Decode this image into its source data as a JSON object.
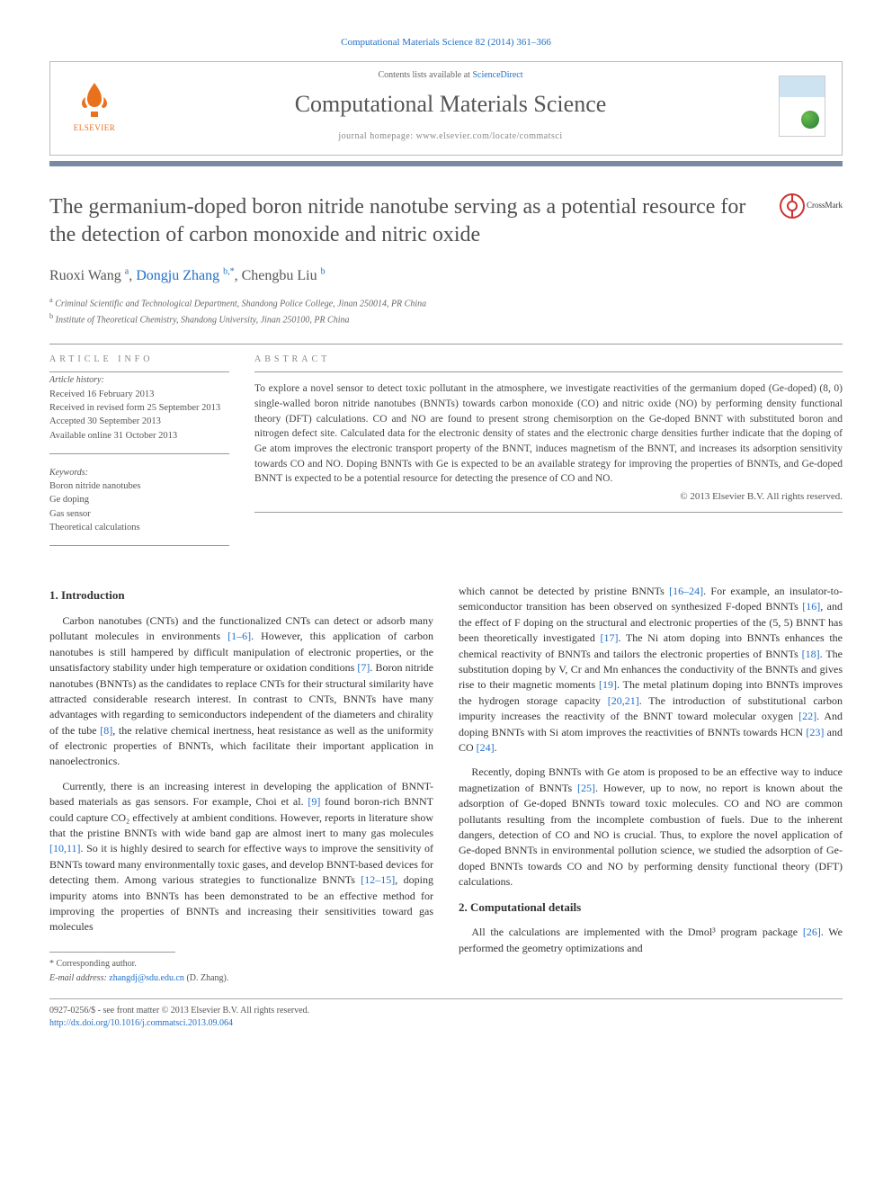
{
  "journal_ref": "Computational Materials Science 82 (2014) 361–366",
  "header": {
    "publisher_name": "ELSEVIER",
    "contents_line_prefix": "Contents lists available at ",
    "contents_line_link": "ScienceDirect",
    "journal_title": "Computational Materials Science",
    "homepage_prefix": "journal homepage: ",
    "homepage_url": "www.elsevier.com/locate/commatsci"
  },
  "crossmark_label": "CrossMark",
  "article": {
    "title": "The germanium-doped boron nitride nanotube serving as a potential resource for the detection of carbon monoxide and nitric oxide",
    "authors_html": "Ruoxi Wang <sup>a</sup>, <span class='author-link'>Dongju Zhang</span> <sup>b,*</sup>, Chengbu Liu <sup>b</sup>",
    "affiliations": [
      {
        "sup": "a",
        "text": "Criminal Scientific and Technological Department, Shandong Police College, Jinan 250014, PR China"
      },
      {
        "sup": "b",
        "text": "Institute of Theoretical Chemistry, Shandong University, Jinan 250100, PR China"
      }
    ]
  },
  "info": {
    "article_info_label": "ARTICLE INFO",
    "history_label": "Article history:",
    "history": [
      "Received 16 February 2013",
      "Received in revised form 25 September 2013",
      "Accepted 30 September 2013",
      "Available online 31 October 2013"
    ],
    "keywords_label": "Keywords:",
    "keywords": [
      "Boron nitride nanotubes",
      "Ge doping",
      "Gas sensor",
      "Theoretical calculations"
    ]
  },
  "abstract": {
    "label": "ABSTRACT",
    "text": "To explore a novel sensor to detect toxic pollutant in the atmosphere, we investigate reactivities of the germanium doped (Ge-doped) (8, 0) single-walled boron nitride nanotubes (BNNTs) towards carbon monoxide (CO) and nitric oxide (NO) by performing density functional theory (DFT) calculations. CO and NO are found to present strong chemisorption on the Ge-doped BNNT with substituted boron and nitrogen defect site. Calculated data for the electronic density of states and the electronic charge densities further indicate that the doping of Ge atom improves the electronic transport property of the BNNT, induces magnetism of the BNNT, and increases its adsorption sensitivity towards CO and NO. Doping BNNTs with Ge is expected to be an available strategy for improving the properties of BNNTs, and Ge-doped BNNT is expected to be a potential resource for detecting the presence of CO and NO.",
    "copyright": "© 2013 Elsevier B.V. All rights reserved."
  },
  "sections": {
    "intro_heading": "1. Introduction",
    "intro_p1": "Carbon nanotubes (CNTs) and the functionalized CNTs can detect or adsorb many pollutant molecules in environments [1–6]. However, this application of carbon nanotubes is still hampered by difficult manipulation of electronic properties, or the unsatisfactory stability under high temperature or oxidation conditions [7]. Boron nitride nanotubes (BNNTs) as the candidates to replace CNTs for their structural similarity have attracted considerable research interest. In contrast to CNTs, BNNTs have many advantages with regarding to semiconductors independent of the diameters and chirality of the tube [8], the relative chemical inertness, heat resistance as well as the uniformity of electronic properties of BNNTs, which facilitate their important application in nanoelectronics.",
    "intro_p2": "Currently, there is an increasing interest in developing the application of BNNT-based materials as gas sensors. For example, Choi et al. [9] found boron-rich BNNT could capture CO₂ effectively at ambient conditions. However, reports in literature show that the pristine BNNTs with wide band gap are almost inert to many gas molecules [10,11]. So it is highly desired to search for effective ways to improve the sensitivity of BNNTs toward many environmentally toxic gases, and develop BNNT-based devices for detecting them. Among various strategies to functionalize BNNTs [12–15], doping impurity atoms into BNNTs has been demonstrated to be an effective method for improving the properties of BNNTs and increasing their sensitivities toward gas molecules",
    "intro_p3": "which cannot be detected by pristine BNNTs [16–24]. For example, an insulator-to-semiconductor transition has been observed on synthesized F-doped BNNTs [16], and the effect of F doping on the structural and electronic properties of the (5, 5) BNNT has been theoretically investigated [17]. The Ni atom doping into BNNTs enhances the chemical reactivity of BNNTs and tailors the electronic properties of BNNTs [18]. The substitution doping by V, Cr and Mn enhances the conductivity of the BNNTs and gives rise to their magnetic moments [19]. The metal platinum doping into BNNTs improves the hydrogen storage capacity [20,21]. The introduction of substitutional carbon impurity increases the reactivity of the BNNT toward molecular oxygen [22]. And doping BNNTs with Si atom improves the reactivities of BNNTs towards HCN [23] and CO [24].",
    "intro_p4": "Recently, doping BNNTs with Ge atom is proposed to be an effective way to induce magnetization of BNNTs [25]. However, up to now, no report is known about the adsorption of Ge-doped BNNTs toward toxic molecules. CO and NO are common pollutants resulting from the incomplete combustion of fuels. Due to the inherent dangers, detection of CO and NO is crucial. Thus, to explore the novel application of Ge-doped BNNTs in environmental pollution science, we studied the adsorption of Ge-doped BNNTs towards CO and NO by performing density functional theory (DFT) calculations.",
    "comp_heading": "2. Computational details",
    "comp_p1": "All the calculations are implemented with the Dmol³ program package [26]. We performed the geometry optimizations and"
  },
  "footer": {
    "corresponding_label": "* Corresponding author.",
    "email_label": "E-mail address:",
    "email": "zhangdj@sdu.edu.cn",
    "email_name": "(D. Zhang).",
    "issn_line": "0927-0256/$ - see front matter © 2013 Elsevier B.V. All rights reserved.",
    "doi_url": "http://dx.doi.org/10.1016/j.commatsci.2013.09.064"
  },
  "colors": {
    "link": "#2370c8",
    "brand": "#e9711c",
    "divider": "#7a8aa0"
  }
}
